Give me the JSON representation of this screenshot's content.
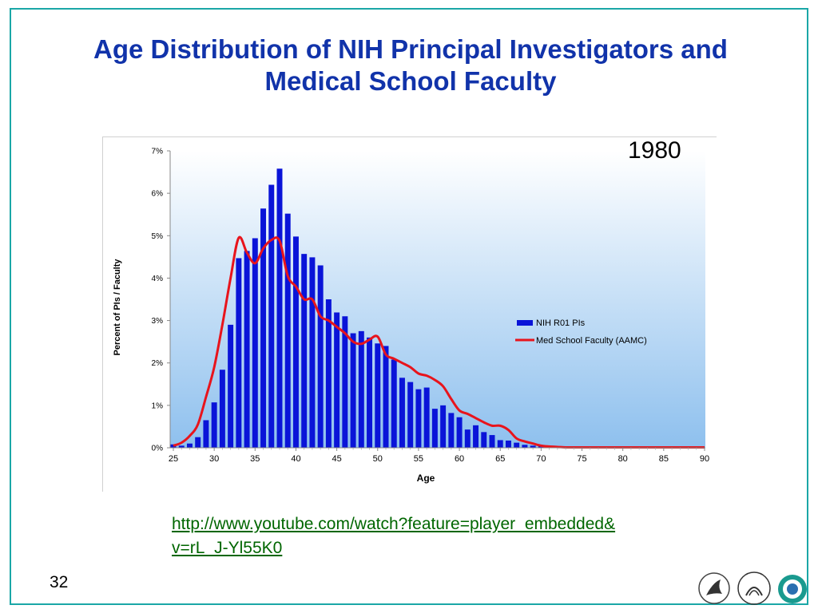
{
  "slide": {
    "title_line1": "Age Distribution of NIH Principal Investigators and",
    "title_line2": "Medical School Faculty",
    "year": "1980",
    "link": "http://www.youtube.com/watch?feature=player_embedded&v=rL_J-Yl55K0",
    "page_number": "32",
    "frame_color": "#1aa7a7",
    "title_color": "#1133aa",
    "logos": [
      "hhs-logo",
      "nih-logo",
      "oer-logo"
    ]
  },
  "chart_data": {
    "type": "bar",
    "title": "",
    "xlabel": "Age",
    "ylabel": "Percent of PIs / Faculty",
    "xlim": [
      25,
      90
    ],
    "ylim": [
      0,
      7
    ],
    "x_ticks": [
      "25",
      "30",
      "35",
      "40",
      "45",
      "50",
      "55",
      "60",
      "65",
      "70",
      "75",
      "80",
      "85",
      "90"
    ],
    "y_ticks": [
      "0%",
      "1%",
      "2%",
      "3%",
      "4%",
      "5%",
      "6%",
      "7%"
    ],
    "grid": false,
    "legend_position": "right",
    "background": "gradient white to light blue",
    "series": [
      {
        "name": "NIH R01 PIs",
        "type": "bar",
        "color": "#0a14d8",
        "x": [
          25,
          26,
          27,
          28,
          29,
          30,
          31,
          32,
          33,
          34,
          35,
          36,
          37,
          38,
          39,
          40,
          41,
          42,
          43,
          44,
          45,
          46,
          47,
          48,
          49,
          50,
          51,
          52,
          53,
          54,
          55,
          56,
          57,
          58,
          59,
          60,
          61,
          62,
          63,
          64,
          65,
          66,
          67,
          68,
          69,
          70,
          71,
          72,
          73,
          74,
          75
        ],
        "values": [
          0.08,
          0.05,
          0.1,
          0.25,
          0.65,
          1.07,
          1.84,
          2.9,
          4.47,
          4.64,
          4.94,
          5.64,
          6.2,
          6.58,
          5.52,
          4.98,
          4.57,
          4.49,
          4.3,
          3.5,
          3.19,
          3.1,
          2.7,
          2.75,
          2.6,
          2.46,
          2.4,
          2.08,
          1.65,
          1.55,
          1.38,
          1.42,
          0.92,
          1.0,
          0.82,
          0.72,
          0.43,
          0.53,
          0.37,
          0.3,
          0.18,
          0.17,
          0.12,
          0.07,
          0.05,
          0.04,
          0.03,
          0.02,
          0.02,
          0.01,
          0.01
        ]
      },
      {
        "name": "Med School Faculty (AAMC)",
        "type": "line",
        "color": "#e8141c",
        "x": [
          25,
          26,
          27,
          28,
          29,
          30,
          31,
          32,
          33,
          34,
          35,
          36,
          37,
          38,
          39,
          40,
          41,
          42,
          43,
          44,
          45,
          46,
          47,
          48,
          49,
          50,
          51,
          52,
          53,
          54,
          55,
          56,
          57,
          58,
          59,
          60,
          61,
          62,
          63,
          64,
          65,
          66,
          67,
          68,
          69,
          70,
          71,
          72,
          73,
          74,
          75,
          76,
          77,
          78,
          79,
          80,
          81,
          82,
          83,
          84,
          85,
          86,
          87,
          88,
          89,
          90
        ],
        "values": [
          0.05,
          0.12,
          0.28,
          0.55,
          1.2,
          1.9,
          2.9,
          4.0,
          4.95,
          4.6,
          4.35,
          4.7,
          4.9,
          4.88,
          4.05,
          3.8,
          3.5,
          3.5,
          3.1,
          3.0,
          2.85,
          2.7,
          2.5,
          2.45,
          2.55,
          2.62,
          2.2,
          2.1,
          2.0,
          1.9,
          1.75,
          1.7,
          1.6,
          1.45,
          1.15,
          0.88,
          0.8,
          0.7,
          0.6,
          0.52,
          0.52,
          0.42,
          0.22,
          0.15,
          0.1,
          0.05,
          0.03,
          0.02,
          0.01,
          0.01,
          0.01,
          0.01,
          0.01,
          0.01,
          0.01,
          0.01,
          0.01,
          0.01,
          0.01,
          0.01,
          0.01,
          0.01,
          0.01,
          0.01,
          0.01,
          0.01
        ]
      }
    ]
  }
}
